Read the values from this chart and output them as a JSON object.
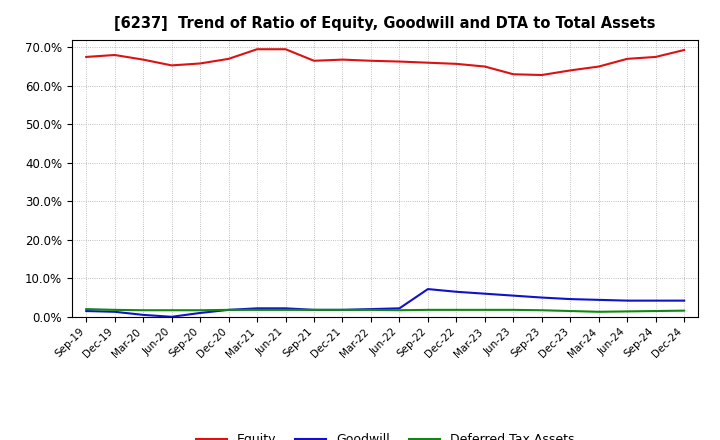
{
  "title": "[6237]  Trend of Ratio of Equity, Goodwill and DTA to Total Assets",
  "labels": [
    "Sep-19",
    "Dec-19",
    "Mar-20",
    "Jun-20",
    "Sep-20",
    "Dec-20",
    "Mar-21",
    "Jun-21",
    "Sep-21",
    "Dec-21",
    "Mar-22",
    "Jun-22",
    "Sep-22",
    "Dec-22",
    "Mar-23",
    "Jun-23",
    "Sep-23",
    "Dec-23",
    "Mar-24",
    "Jun-24",
    "Sep-24",
    "Dec-24"
  ],
  "equity": [
    0.675,
    0.68,
    0.668,
    0.653,
    0.658,
    0.67,
    0.695,
    0.695,
    0.665,
    0.668,
    0.665,
    0.663,
    0.66,
    0.657,
    0.65,
    0.63,
    0.628,
    0.64,
    0.65,
    0.67,
    0.675,
    0.693
  ],
  "goodwill": [
    0.015,
    0.013,
    0.005,
    0.0,
    0.01,
    0.018,
    0.022,
    0.022,
    0.018,
    0.018,
    0.02,
    0.022,
    0.072,
    0.065,
    0.06,
    0.055,
    0.05,
    0.046,
    0.044,
    0.042,
    0.042,
    0.042
  ],
  "dta": [
    0.02,
    0.018,
    0.017,
    0.017,
    0.017,
    0.018,
    0.018,
    0.018,
    0.018,
    0.018,
    0.018,
    0.017,
    0.018,
    0.018,
    0.018,
    0.018,
    0.017,
    0.015,
    0.013,
    0.014,
    0.015,
    0.016
  ],
  "equity_color": "#dd1111",
  "goodwill_color": "#1111cc",
  "dta_color": "#118811",
  "bg_color": "#ffffff",
  "plot_bg_color": "#ffffff",
  "grid_color": "#aaaaaa",
  "ylim": [
    0.0,
    0.72
  ],
  "yticks": [
    0.0,
    0.1,
    0.2,
    0.3,
    0.4,
    0.5,
    0.6,
    0.7
  ]
}
